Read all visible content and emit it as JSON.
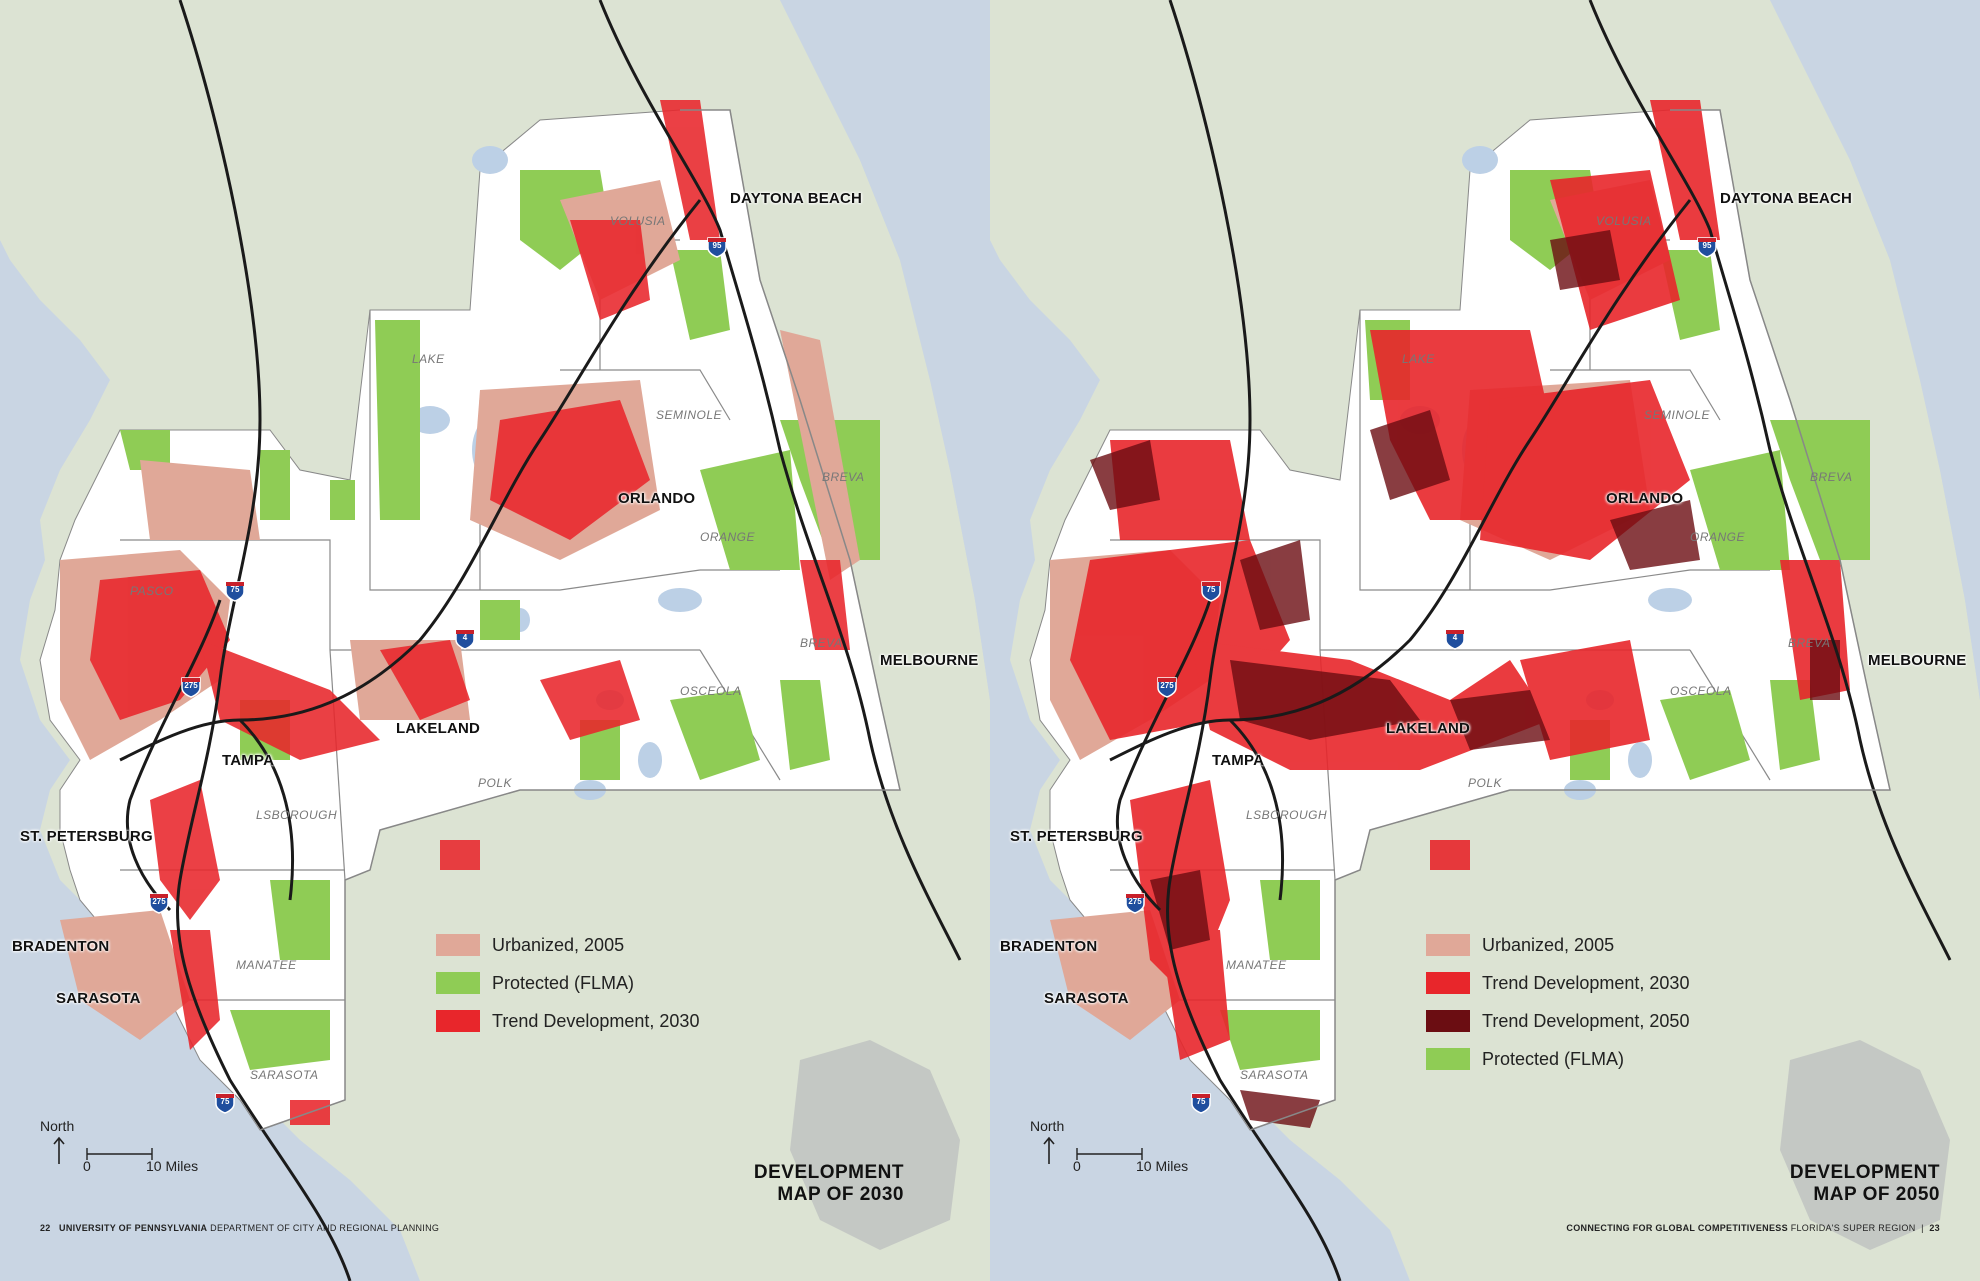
{
  "colors": {
    "water": "#c9d5e3",
    "land": "#dce3d3",
    "region": "#ffffff",
    "lake": "#bcd0e6",
    "urbanized_2005": "#e0a898",
    "protected": "#8fcc55",
    "trend_2030": "#e8262b",
    "trend_2050": "#6b0d12",
    "highway": "#1a1a1a"
  },
  "left": {
    "cities": {
      "daytona": "DAYTONA BEACH",
      "orlando": "ORLANDO",
      "melbourne": "MELBOURNE",
      "lakeland": "LAKELAND",
      "tampa": "TAMPA",
      "st_pete": "ST. PETERSBURG",
      "bradenton": "BRADENTON",
      "sarasota": "SARASOTA"
    },
    "counties": {
      "volusia": "VOLUSIA",
      "lake": "LAKE",
      "seminole": "SEMINOLE",
      "orange": "ORANGE",
      "brevard_n": "BREVA",
      "brevard_s": "BREVA",
      "pasco": "PASCO",
      "osceola": "OSCEOLA",
      "polk": "POLK",
      "hillsborough": "LSBOROUGH",
      "manatee": "MANATEE",
      "sarasota": "SARASOTA"
    },
    "shields": {
      "i95": "95",
      "i4": "4",
      "i75_n": "75",
      "i275_n": "275",
      "i275_s": "275",
      "i75_s": "75"
    },
    "legend": [
      {
        "label": "Urbanized, 2005",
        "color": "#e0a898"
      },
      {
        "label": "Protected (FLMA)",
        "color": "#8fcc55"
      },
      {
        "label": "Trend Development, 2030",
        "color": "#e8262b"
      }
    ],
    "north_label": "North",
    "scale_zero": "0",
    "scale_label": "10 Miles",
    "title_line1": "DEVELOPMENT",
    "title_line2": "MAP OF 2030",
    "footer_page": "22",
    "footer_bold": "UNIVERSITY OF PENNSYLVANIA",
    "footer_rest": "DEPARTMENT OF CITY AND REGIONAL PLANNING"
  },
  "right": {
    "cities": {
      "daytona": "DAYTONA BEACH",
      "orlando": "ORLANDO",
      "melbourne": "MELBOURNE",
      "lakeland": "LAKELAND",
      "tampa": "TAMPA",
      "st_pete": "ST. PETERSBURG",
      "bradenton": "BRADENTON",
      "sarasota": "SARASOTA"
    },
    "counties": {
      "volusia": "VOLUSIA",
      "lake": "LAKE",
      "seminole": "SEMINOLE",
      "orange": "ORANGE",
      "brevard_n": "BREVA",
      "brevard_s": "BREVA",
      "osceola": "OSCEOLA",
      "polk": "POLK",
      "hillsborough": "LSBOROUGH",
      "manatee": "MANATEE",
      "sarasota": "SARASOTA"
    },
    "shields": {
      "i95": "95",
      "i4": "4",
      "i75_n": "75",
      "i275_n": "275",
      "i275_s": "275",
      "i75_s": "75"
    },
    "legend": [
      {
        "label": "Urbanized, 2005",
        "color": "#e0a898"
      },
      {
        "label": "Trend Development, 2030",
        "color": "#e8262b"
      },
      {
        "label": "Trend Development, 2050",
        "color": "#6b0d12"
      },
      {
        "label": "Protected (FLMA)",
        "color": "#8fcc55"
      }
    ],
    "north_label": "North",
    "scale_zero": "0",
    "scale_label": "10 Miles",
    "title_line1": "DEVELOPMENT",
    "title_line2": "MAP OF 2050",
    "footer_bold": "CONNECTING FOR GLOBAL COMPETITIVENESS",
    "footer_rest": "FLORIDA'S SUPER REGION",
    "footer_page": "23"
  }
}
